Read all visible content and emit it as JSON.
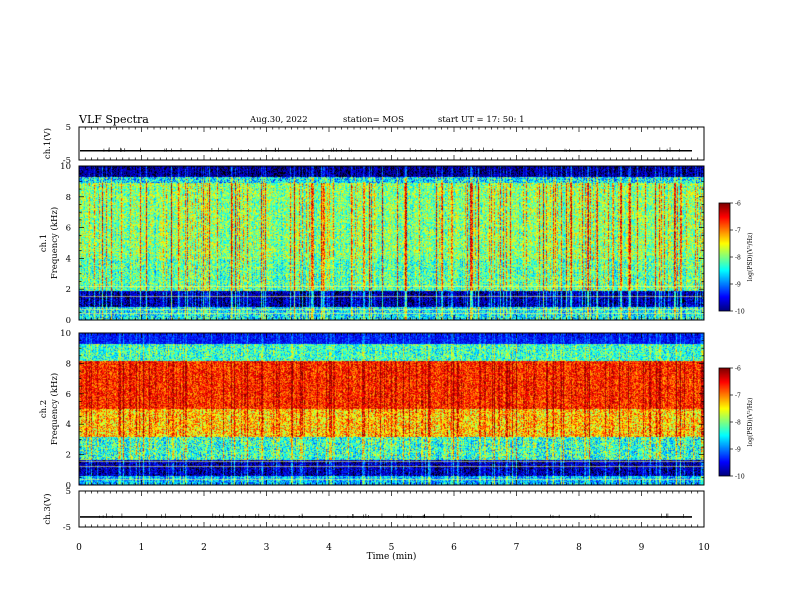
{
  "header": {
    "title": "VLF Spectra",
    "date": "Aug.30, 2022",
    "station": "station= MOS",
    "start": "start  UT  =   17: 50: 1"
  },
  "chart_data": [
    {
      "type": "line",
      "panel": "ch1-waveform",
      "ylabel": "ch.1(V)",
      "ylim": [
        -5,
        5
      ],
      "yticks": [
        "5",
        "-5"
      ],
      "xlim": [
        0,
        10
      ],
      "baseline_value": -2.2
    },
    {
      "type": "heatmap",
      "panel": "ch1-spectrogram",
      "ylabel_channel": "ch.1",
      "ylabel": "Frequency  (kHz)",
      "ylim": [
        0,
        10
      ],
      "yticks": [
        "0",
        "2",
        "4",
        "6",
        "8",
        "10"
      ],
      "xlim": [
        0,
        10
      ],
      "colorbar": {
        "label": "log(PSD)(V²/Hz)",
        "range": [
          -10,
          -6
        ],
        "ticks": [
          "-6",
          "-7",
          "-8",
          "-9",
          "-10"
        ]
      }
    },
    {
      "type": "heatmap",
      "panel": "ch2-spectrogram",
      "ylabel_channel": "ch.2",
      "ylabel": "Frequency  (kHz)",
      "ylim": [
        0,
        10
      ],
      "yticks": [
        "0",
        "2",
        "4",
        "6",
        "8",
        "10"
      ],
      "xlim": [
        0,
        10
      ],
      "colorbar": {
        "label": "log(PSD)(V²/Hz)",
        "range": [
          -10,
          -6
        ],
        "ticks": [
          "-6",
          "-7",
          "-8",
          "-9",
          "-10"
        ]
      }
    },
    {
      "type": "line",
      "panel": "ch3-waveform",
      "ylabel": "ch.3(V)",
      "ylim": [
        -5,
        5
      ],
      "yticks": [
        "5",
        "-5"
      ],
      "xlim": [
        0,
        10
      ],
      "xlabel": "Time  (min)",
      "xticks": [
        "0",
        "1",
        "2",
        "3",
        "4",
        "5",
        "6",
        "7",
        "8",
        "9",
        "10"
      ],
      "baseline_value": -2.2
    }
  ]
}
